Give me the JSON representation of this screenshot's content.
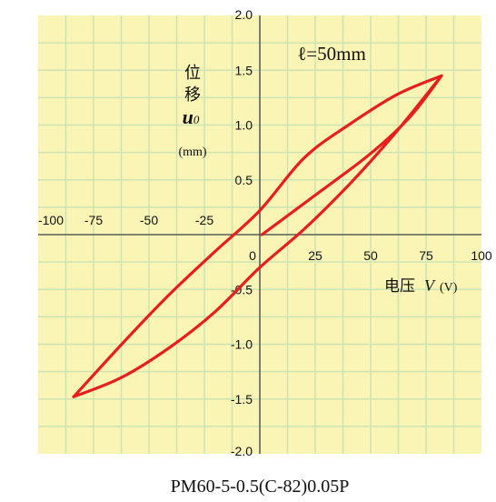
{
  "chart_data": {
    "type": "line",
    "title": "ℓ=50mm",
    "caption": "PM60-5-0.5(C-82)0.05P",
    "ylabel": {
      "line1": "位",
      "line2": "移",
      "symbol": "u",
      "subscript": "0",
      "unit": "(mm)"
    },
    "xlabel": {
      "text": "电压",
      "symbol": "V",
      "unit": "(V)"
    },
    "xlim": [
      -100,
      100
    ],
    "ylim": [
      -2.0,
      2.0
    ],
    "x_ticks": [
      -100,
      -75,
      -50,
      -25,
      0,
      25,
      50,
      75,
      100
    ],
    "y_ticks": [
      2.0,
      1.5,
      1.0,
      0.5,
      -0.5,
      -1.0,
      -1.5,
      -2.0
    ],
    "x_tick_labels": [
      "-100",
      "-75",
      "-50",
      "-25",
      "0",
      "25",
      "50",
      "75",
      "100"
    ],
    "y_tick_labels": [
      "2.0",
      "1.5",
      "1.0",
      "0.5",
      "-0.5",
      "-1.0",
      "-1.5",
      "-2.0"
    ],
    "grid": true,
    "colors": {
      "background": "#fbf5b5",
      "grid": "#cce3b3",
      "axis": "#444444",
      "curve": "#e61e1e"
    },
    "series": [
      {
        "values": [
          {
            "x": 1,
            "y": 0.0
          },
          {
            "x": 25,
            "y": 0.36
          },
          {
            "x": 50,
            "y": 0.74
          },
          {
            "x": 68,
            "y": 1.08
          },
          {
            "x": 82,
            "y": 1.45
          },
          {
            "x": 62,
            "y": 1.28
          },
          {
            "x": 40,
            "y": 1.0
          },
          {
            "x": 20,
            "y": 0.7
          },
          {
            "x": 0,
            "y": 0.22
          },
          {
            "x": -20,
            "y": -0.15
          },
          {
            "x": -40,
            "y": -0.53
          },
          {
            "x": -60,
            "y": -0.95
          },
          {
            "x": -84,
            "y": -1.48
          },
          {
            "x": -62,
            "y": -1.3
          },
          {
            "x": -40,
            "y": -1.02
          },
          {
            "x": -20,
            "y": -0.7
          },
          {
            "x": 0,
            "y": -0.3
          },
          {
            "x": 20,
            "y": 0.05
          },
          {
            "x": 40,
            "y": 0.45
          },
          {
            "x": 60,
            "y": 0.9
          },
          {
            "x": 82,
            "y": 1.45
          }
        ]
      }
    ]
  }
}
